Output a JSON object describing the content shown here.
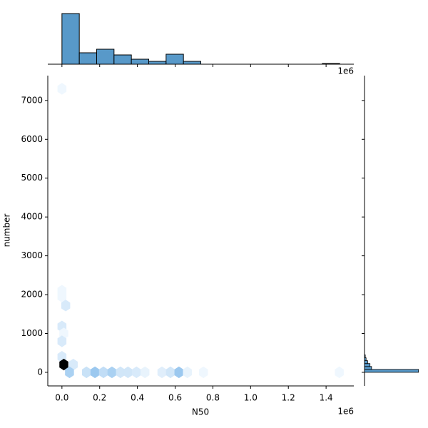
{
  "chart_data": {
    "type": "hexbin",
    "x_label": "N50",
    "y_label": "number",
    "x_offset_label": "1e6",
    "xlim": [
      -75000,
      1547000
    ],
    "ylim": [
      -350,
      7640
    ],
    "xticks": [
      {
        "value": 0,
        "label": "0.0"
      },
      {
        "value": 200000,
        "label": "0.2"
      },
      {
        "value": 400000,
        "label": "0.4"
      },
      {
        "value": 600000,
        "label": "0.6"
      },
      {
        "value": 800000,
        "label": "0.8"
      },
      {
        "value": 1000000,
        "label": "1.0"
      },
      {
        "value": 1200000,
        "label": "1.2"
      },
      {
        "value": 1400000,
        "label": "1.4"
      }
    ],
    "yticks": [
      0,
      1000,
      2000,
      3000,
      4000,
      5000,
      6000,
      7000
    ],
    "colormap": [
      "#f7fbff",
      "#5da6e4",
      "#000000"
    ],
    "hexbin": {
      "x": [
        0,
        0,
        0,
        20000,
        0,
        10000,
        0,
        0,
        10000,
        60000,
        40000,
        130000,
        175000,
        220000,
        265000,
        310000,
        350000,
        395000,
        440000,
        530000,
        575000,
        620000,
        665000,
        750000,
        1470000
      ],
      "y": [
        7300,
        2100,
        1950,
        1720,
        1180,
        1000,
        800,
        400,
        200,
        200,
        0,
        0,
        0,
        0,
        0,
        0,
        0,
        0,
        0,
        0,
        0,
        0,
        0,
        0,
        0
      ],
      "counts": [
        1,
        1,
        1,
        4,
        4,
        1,
        4,
        4,
        40,
        4,
        10,
        6,
        12,
        7,
        10,
        5,
        5,
        4,
        2,
        3,
        5,
        12,
        2,
        1,
        1
      ]
    },
    "x_hist": {
      "color": "#5899c9",
      "bins": [
        0,
        92000,
        184000,
        276000,
        368000,
        460000,
        552000,
        644000,
        736000,
        828000,
        920000,
        1012000,
        1104000,
        1196000,
        1288000,
        1380000,
        1472000
      ],
      "counts": [
        71,
        16,
        21,
        13,
        7,
        4,
        14,
        4,
        0,
        0,
        0,
        0,
        0,
        0,
        0,
        1
      ],
      "ylim": [
        0,
        75
      ]
    },
    "y_hist": {
      "color": "#5899c9",
      "bins": [
        0,
        75,
        150,
        225,
        300,
        375,
        450
      ],
      "counts": [
        69,
        9,
        7,
        4,
        2,
        1
      ],
      "xlim": [
        0,
        72
      ]
    }
  }
}
